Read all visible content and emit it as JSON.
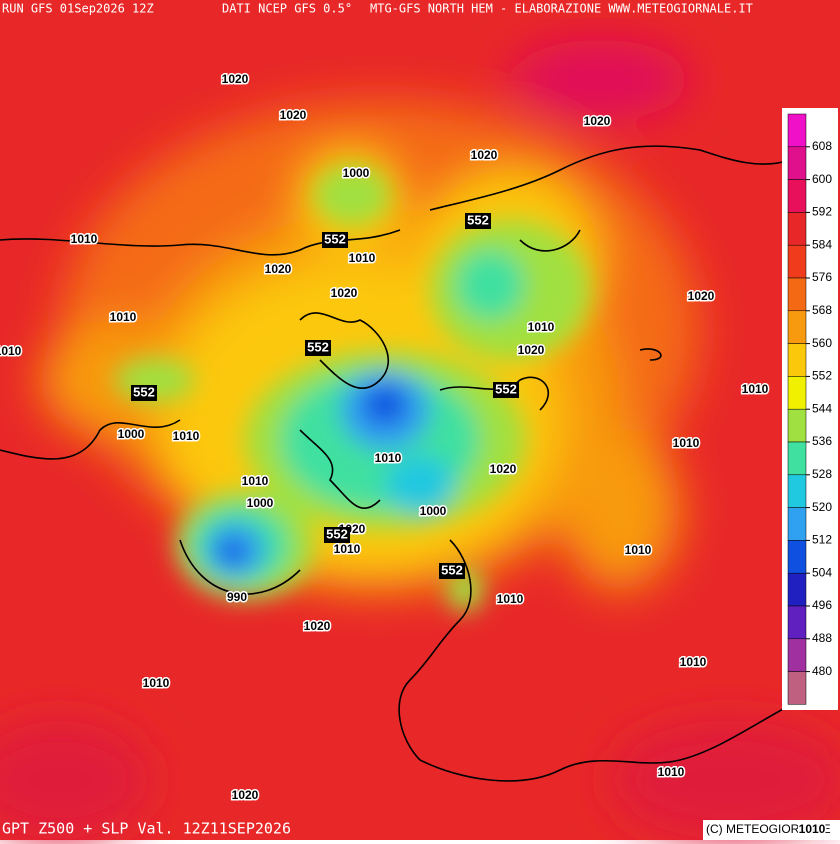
{
  "header": {
    "run": "RUN GFS 01Sep2026 12Z",
    "source": "DATI NCEP GFS 0.5°",
    "producer": "MTG-GFS NORTH HEM - ELABORAZIONE WWW.METEOGIORNALE.IT"
  },
  "footer": {
    "title": "GPT Z500 + SLP Val. 12Z11SEP2026",
    "copyright": "(C) METEOGIORNALE"
  },
  "legend": {
    "levels": [
      608,
      600,
      592,
      584,
      576,
      568,
      560,
      552,
      544,
      536,
      528,
      520,
      512,
      504,
      496,
      488,
      480
    ],
    "colors": [
      "#f010c8",
      "#e0108c",
      "#e8105a",
      "#e82828",
      "#f03c1c",
      "#f46a14",
      "#f89a10",
      "#fcc80c",
      "#f0f000",
      "#a0e040",
      "#40e0a0",
      "#20c8e0",
      "#30a0f0",
      "#1050e0",
      "#2020c0",
      "#6020c0",
      "#a030a0",
      "#c06080"
    ]
  },
  "slp_labels": [
    1020,
    1020,
    1020,
    1020,
    1000,
    1010,
    1020,
    1010,
    1020,
    1020,
    1010,
    1010,
    1020,
    1010,
    1010,
    1000,
    1010,
    1010,
    1010,
    1020,
    1010,
    1000,
    1000,
    1020,
    1010,
    1010,
    990,
    1010,
    1020,
    1010,
    1010,
    1010,
    1020,
    1010
  ],
  "z500_labels": [
    552,
    552,
    552,
    552,
    552,
    552,
    552
  ]
}
